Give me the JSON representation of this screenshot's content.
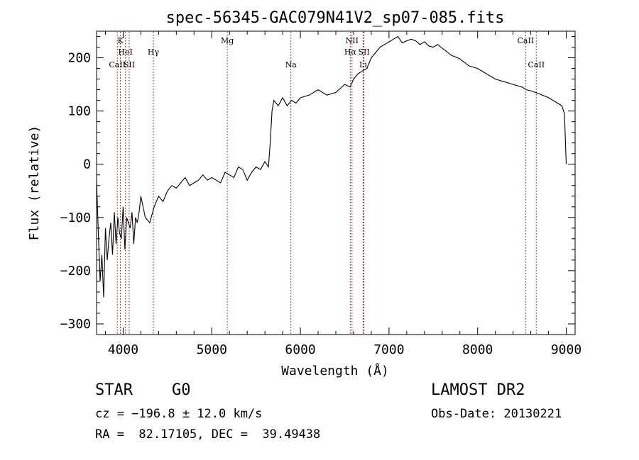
{
  "chart_data": {
    "type": "line",
    "title": "spec-56345-GAC079N41V2_sp07-085.fits",
    "xlabel": "Wavelength (Å)",
    "ylabel": "Flux (relative)",
    "xlim": [
      3700,
      9100
    ],
    "ylim": [
      -320,
      250
    ],
    "xticks": [
      4000,
      5000,
      6000,
      7000,
      8000,
      9000
    ],
    "yticks": [
      -300,
      -200,
      -100,
      0,
      100,
      200
    ],
    "grid": false,
    "line_color": "#000000",
    "marker_color": "#8b0000",
    "series": [
      {
        "x": [
          3700,
          3720,
          3740,
          3760,
          3780,
          3800,
          3820,
          3840,
          3860,
          3880,
          3900,
          3920,
          3940,
          3960,
          3980,
          4000,
          4020,
          4040,
          4060,
          4080,
          4100,
          4120,
          4140,
          4160,
          4180,
          4200,
          4250,
          4300,
          4350,
          4400,
          4450,
          4500,
          4550,
          4600,
          4650,
          4700,
          4750,
          4800,
          4850,
          4900,
          4950,
          5000,
          5050,
          5100,
          5150,
          5200,
          5250,
          5300,
          5350,
          5400,
          5450,
          5500,
          5550,
          5600,
          5640,
          5660,
          5680,
          5700,
          5750,
          5800,
          5850,
          5900,
          5950,
          6000,
          6100,
          6200,
          6300,
          6400,
          6500,
          6560,
          6600,
          6650,
          6700,
          6750,
          6800,
          6850,
          6900,
          6950,
          7000,
          7050,
          7100,
          7150,
          7200,
          7250,
          7300,
          7350,
          7400,
          7450,
          7500,
          7550,
          7600,
          7650,
          7700,
          7800,
          7900,
          8000,
          8100,
          8200,
          8300,
          8400,
          8500,
          8550,
          8600,
          8700,
          8800,
          8900,
          8950,
          8980,
          9000
        ],
        "y": [
          -30,
          -130,
          -220,
          -170,
          -250,
          -120,
          -180,
          -140,
          -110,
          -170,
          -90,
          -150,
          -100,
          -130,
          -140,
          -80,
          -160,
          -100,
          -110,
          -120,
          -90,
          -150,
          -100,
          -110,
          -90,
          -60,
          -100,
          -110,
          -80,
          -60,
          -70,
          -50,
          -40,
          -45,
          -35,
          -25,
          -40,
          -35,
          -30,
          -20,
          -30,
          -25,
          -30,
          -35,
          -15,
          -20,
          -25,
          -5,
          -10,
          -30,
          -15,
          -5,
          -10,
          5,
          -5,
          40,
          100,
          120,
          110,
          125,
          110,
          120,
          115,
          125,
          130,
          140,
          130,
          135,
          150,
          145,
          160,
          170,
          175,
          180,
          200,
          210,
          220,
          225,
          230,
          235,
          240,
          228,
          232,
          235,
          232,
          225,
          230,
          222,
          220,
          225,
          218,
          212,
          205,
          198,
          185,
          180,
          170,
          160,
          155,
          150,
          145,
          140,
          138,
          132,
          125,
          115,
          110,
          95,
          0
        ]
      }
    ],
    "line_markers": [
      {
        "label": "CaII",
        "x": 3934,
        "row": 3
      },
      {
        "label": "K",
        "x": 3969,
        "row": 1
      },
      {
        "label": "HeI",
        "x": 4026,
        "row": 2
      },
      {
        "label": "SII",
        "x": 4068,
        "row": 3
      },
      {
        "label": "Hγ",
        "x": 4341,
        "row": 2
      },
      {
        "label": "Mg",
        "x": 5175,
        "row": 1
      },
      {
        "label": "Na",
        "x": 5893,
        "row": 3
      },
      {
        "label": "NII",
        "x": 6583,
        "row": 1
      },
      {
        "label": "Hα",
        "x": 6563,
        "row": 2
      },
      {
        "label": "SII",
        "x": 6717,
        "row": 2
      },
      {
        "label": "Li",
        "x": 6708,
        "row": 3
      },
      {
        "label": "CaII",
        "x": 8542,
        "row": 1
      },
      {
        "label": "CaII",
        "x": 8662,
        "row": 3
      }
    ]
  },
  "info": {
    "class_label": "STAR",
    "subclass_label": "G0",
    "redshift_text": "cz = −196.8 ± 12.0 km/s",
    "coords_text": "RA =  82.17105, DEC =  39.49438",
    "survey_text": "LAMOST DR2",
    "obs_date_text": "Obs-Date: 20130221"
  }
}
